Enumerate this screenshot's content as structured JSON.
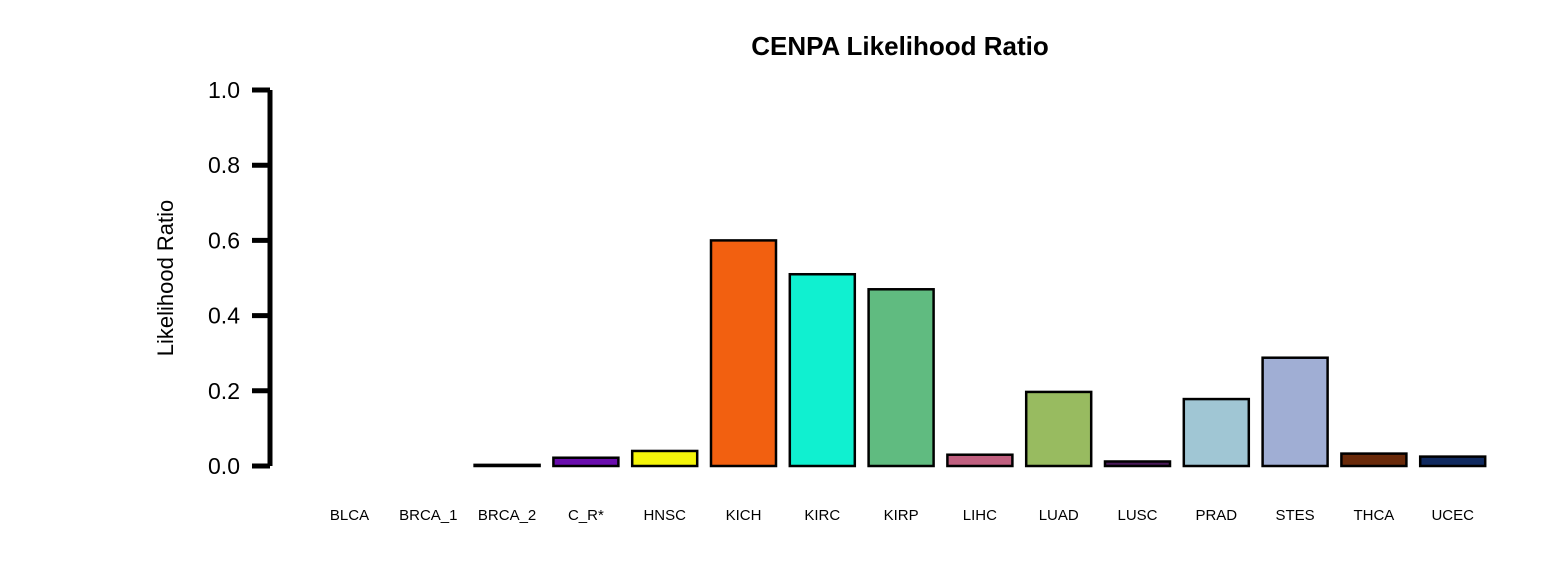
{
  "chart_data": {
    "type": "bar",
    "title": "CENPA Likelihood Ratio",
    "xlabel": "",
    "ylabel": "Likelihood Ratio",
    "ylim": [
      0,
      1.0
    ],
    "yticks": [
      "0.0",
      "0.2",
      "0.4",
      "0.6",
      "0.8",
      "1.0"
    ],
    "grid": false,
    "categories": [
      "BLCA",
      "BRCA_1",
      "BRCA_2",
      "C_R*",
      "HNSC",
      "KICH",
      "KIRC",
      "KIRP",
      "LIHC",
      "LUAD",
      "LUSC",
      "PRAD",
      "STES",
      "THCA",
      "UCEC"
    ],
    "values": [
      0.0,
      0.0,
      0.003,
      0.022,
      0.04,
      0.6,
      0.51,
      0.47,
      0.03,
      0.197,
      0.012,
      0.178,
      0.288,
      0.033,
      0.025
    ],
    "colors": [
      "#000000",
      "#000000",
      "#000000",
      "#6a0dad",
      "#f5f50a",
      "#f26010",
      "#10f0d0",
      "#60bb80",
      "#c06080",
      "#98bb60",
      "#4a1a5a",
      "#a0c6d4",
      "#a0aed4",
      "#6a2a0a",
      "#102a60"
    ]
  }
}
